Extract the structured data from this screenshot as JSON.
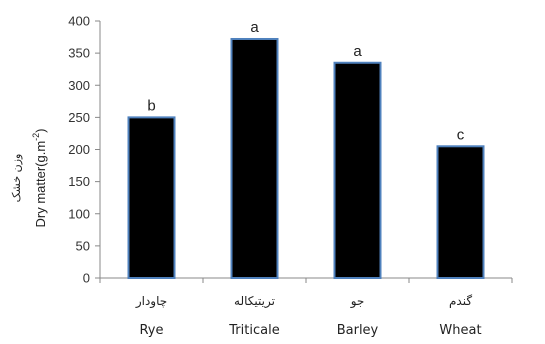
{
  "chart_data": {
    "type": "bar",
    "categories": [
      "Rye",
      "Triticale",
      "Barley",
      "Wheat"
    ],
    "categories_fa": [
      "چاودار",
      "تریتیکاله",
      "جو",
      "گندم"
    ],
    "values": [
      250,
      372,
      335,
      205
    ],
    "annotations": [
      "b",
      "a",
      "a",
      "c"
    ],
    "ylabel": "Dry matter(g.m",
    "ylabel_sup": "-2",
    "ylabel_close": ")",
    "ylabel_fa": "وزن خشک",
    "ylim": [
      0,
      400
    ],
    "yticks": [
      "0",
      "50",
      "100",
      "150",
      "200",
      "250",
      "300",
      "350",
      "400"
    ],
    "grid": false,
    "bar_color": "#000000",
    "bar_edge_color": "#4f81bd"
  }
}
